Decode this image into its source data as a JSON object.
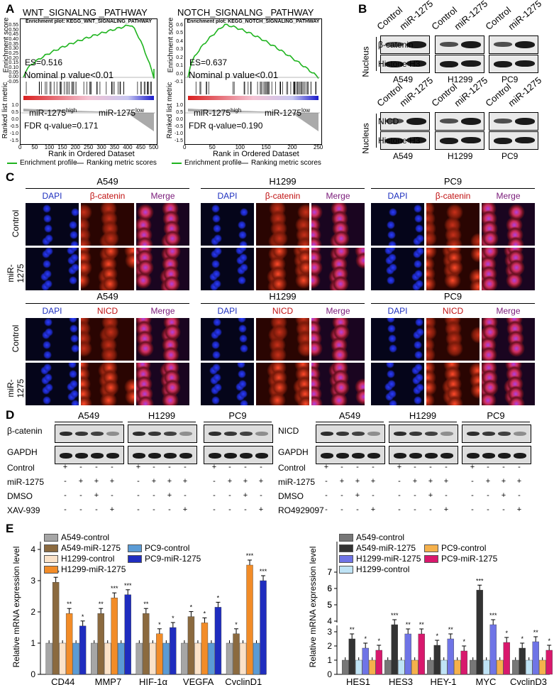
{
  "panels": {
    "A": "A",
    "B": "B",
    "C": "C",
    "D": "D",
    "E": "E"
  },
  "gsea": [
    {
      "title": "WNT_SIGNALNG _PATHWAY",
      "plot_title": "Enrichment plot: KEGG_WNT_SIGNALING_PATHWAY",
      "es": "ES=0.516",
      "pval": "Nominal p value<0.01",
      "high": "miR-1275",
      "high_sup": "high",
      "low": "miR-1275",
      "low_sup": "low",
      "fdr": "FDR q-value=0.171"
    },
    {
      "title": "NOTCH_SIGNALNG _PATHWAY",
      "plot_title": "Enrichment plot: KEGG_NOTCH_SIGNALING_PATHWAY",
      "es": "ES=0.637",
      "pval": "Nominal p value<0.01",
      "high": "miR-1275",
      "high_sup": "high",
      "low": "miR-1275",
      "low_sup": "low",
      "fdr": "FDR q-value=0.190"
    }
  ],
  "gsea_common": {
    "y1": "Enrichment score",
    "y2": "Ranked list metric",
    "x": "Rank in Ordered Dataset",
    "leg1": "Enrichment profile",
    "leg2": "Ranking metric scores",
    "yticks1": [
      "0.55",
      "0.50",
      "0.45",
      "0.40",
      "0.35",
      "0.30",
      "0.25",
      "0.20",
      "0.15",
      "0.10",
      "0.05",
      "0.00",
      "-0.05"
    ],
    "yticks1b": [
      "0.6",
      "0.5",
      "0.4",
      "0.3",
      "0.2",
      "0.1",
      "0.0",
      "-0.1"
    ],
    "yticks2": [
      "1.0",
      "0.5",
      "0.0",
      "-0.5",
      "-1.0",
      "-1.5"
    ],
    "xticks": [
      "0",
      "50",
      "100",
      "150",
      "200",
      "250",
      "300",
      "350",
      "400",
      "450",
      "500"
    ],
    "xticksb": [
      "0",
      "50",
      "100",
      "150",
      "200",
      "250"
    ]
  },
  "blotB": {
    "nucleus": "Nucleus",
    "control": "Control",
    "mir": "miR-1275",
    "cells": [
      "A549",
      "H1299",
      "PC9"
    ],
    "rows1": [
      "β-catenin",
      "Histone H3"
    ],
    "rows2": [
      "NICD",
      "Histone H3"
    ]
  },
  "micro": {
    "cells": [
      "A549",
      "H1299",
      "PC9"
    ],
    "cols1": [
      "DAPI",
      "β-catenin",
      "Merge"
    ],
    "cols2": [
      "DAPI",
      "NICD",
      "Merge"
    ],
    "rows": [
      "Control",
      "miR-1275"
    ]
  },
  "blotD": {
    "cells": [
      "A549",
      "H1299",
      "PC9"
    ],
    "left_rows": [
      "β-catenin",
      "GAPDH"
    ],
    "right_rows": [
      "NICD",
      "GAPDH"
    ],
    "treat_left": [
      "Control",
      "miR-1275",
      "DMSO",
      "XAV-939"
    ],
    "treat_right": [
      "Control",
      "miR-1275",
      "DMSO",
      "RO4929097"
    ],
    "signs": [
      [
        "+",
        "-",
        "-",
        "-"
      ],
      [
        "-",
        "+",
        "+",
        "+"
      ],
      [
        "-",
        "-",
        "+",
        "-"
      ],
      [
        "-",
        "-",
        "-",
        "+"
      ]
    ]
  },
  "chart_data": [
    {
      "type": "bar",
      "ylabel": "Relative mRNA expression level",
      "categories": [
        "CD44",
        "MMP7",
        "HIF-1α",
        "VEGFA",
        "CyclinD1"
      ],
      "ylim": [
        0,
        4
      ],
      "yticks": [
        "0",
        "1",
        "2",
        "3",
        "4"
      ],
      "series": [
        {
          "name": "A549-control",
          "values": [
            1,
            1,
            1,
            1,
            1
          ],
          "color": "#a6a6a6"
        },
        {
          "name": "A549-miR-1275",
          "values": [
            2.95,
            1.95,
            1.95,
            1.85,
            1.3
          ],
          "color": "#8b6a3f"
        },
        {
          "name": "H1299-control",
          "values": [
            1,
            1,
            1,
            1,
            1
          ],
          "color": "#fbe2c8"
        },
        {
          "name": "H1299-miR-1275",
          "values": [
            1.95,
            2.45,
            1.3,
            1.65,
            3.5
          ],
          "color": "#f28c28"
        },
        {
          "name": "PC9-control",
          "values": [
            1,
            1,
            1,
            1,
            1
          ],
          "color": "#5b9bd5"
        },
        {
          "name": "PC9-miR-1275",
          "values": [
            1.55,
            2.55,
            1.5,
            2.15,
            3.0
          ],
          "color": "#1f2dbf"
        }
      ],
      "stars": [
        [
          "***",
          "**",
          "*"
        ],
        [
          "**",
          "***",
          "***"
        ],
        [
          "**",
          "*",
          "*"
        ],
        [
          "*",
          "*",
          "*"
        ],
        [
          "*",
          "***",
          "***"
        ]
      ]
    },
    {
      "type": "bar",
      "ylabel": "Relative mRNA expression level",
      "categories": [
        "HES1",
        "HES3",
        "HEY-1",
        "MYC",
        "CyclinD3"
      ],
      "yticks": [
        "0",
        "1",
        "2",
        "3",
        "4",
        "5",
        "6",
        "7"
      ],
      "series": [
        {
          "name": "A549-control",
          "values": [
            1,
            1,
            1,
            1,
            1
          ],
          "color": "#777777"
        },
        {
          "name": "A549-miR-1275",
          "values": [
            2.5,
            3.8,
            2.05,
            5.9,
            1.85
          ],
          "color": "#333333"
        },
        {
          "name": "H1299-control",
          "values": [
            1,
            1,
            1,
            1,
            1
          ],
          "color": "#bfe3f5"
        },
        {
          "name": "H1299-miR-1275",
          "values": [
            1.85,
            2.85,
            2.5,
            3.7,
            2.3
          ],
          "color": "#6f74e6"
        },
        {
          "name": "PC9-control",
          "values": [
            1,
            1,
            1,
            1,
            1
          ],
          "color": "#f5b14c"
        },
        {
          "name": "PC9-miR-1275",
          "values": [
            1.7,
            2.85,
            1.65,
            2.25,
            1.7
          ],
          "color": "#d8186d"
        }
      ],
      "stars": [
        [
          "**",
          "*",
          "*"
        ],
        [
          "***",
          "**",
          "**"
        ],
        [
          "*",
          "**",
          "*"
        ],
        [
          "***",
          "***",
          "*"
        ],
        [
          "*",
          "**",
          "*"
        ]
      ]
    }
  ]
}
